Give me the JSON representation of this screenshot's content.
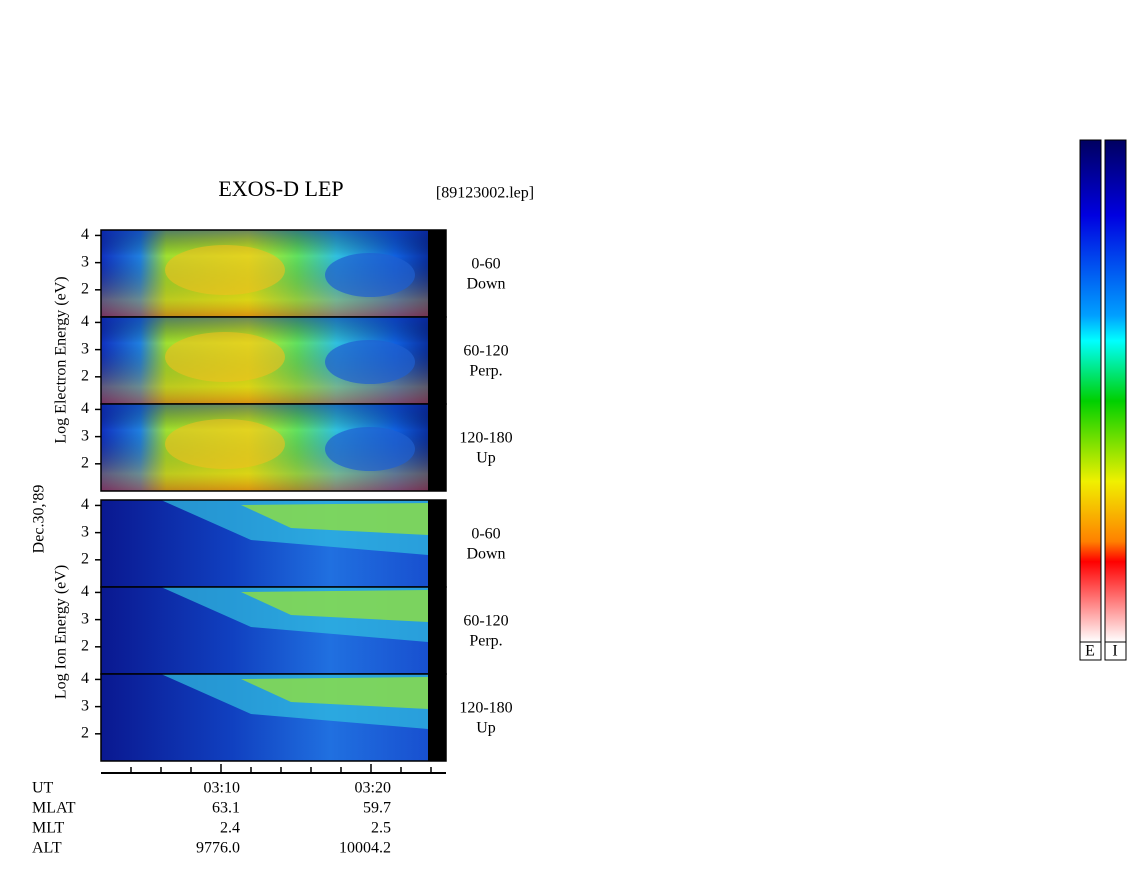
{
  "title": "EXOS-D LEP",
  "file": "[89123002.lep]",
  "date_label": "Dec.30,'89",
  "electron_axis_label": "Log  Electron  Energy (eV)",
  "ion_axis_label": "Log  Ion  Energy (eV)",
  "electron_panels": [
    {
      "angle": "0-60",
      "direction": "Down",
      "ylim": [
        1,
        4.2
      ],
      "yticks": [
        2,
        3,
        4
      ]
    },
    {
      "angle": "60-120",
      "direction": "Perp.",
      "ylim": [
        1,
        4.2
      ],
      "yticks": [
        2,
        3,
        4
      ]
    },
    {
      "angle": "120-180",
      "direction": "Up",
      "ylim": [
        1,
        4.2
      ],
      "yticks": [
        2,
        3,
        4
      ]
    }
  ],
  "ion_panels": [
    {
      "angle": "0-60",
      "direction": "Down",
      "ylim": [
        1,
        4.2
      ],
      "yticks": [
        2,
        3,
        4
      ]
    },
    {
      "angle": "60-120",
      "direction": "Perp.",
      "ylim": [
        1,
        4.2
      ],
      "yticks": [
        2,
        3,
        4
      ]
    },
    {
      "angle": "120-180",
      "direction": "Up",
      "ylim": [
        1,
        4.2
      ],
      "yticks": [
        2,
        3,
        4
      ]
    }
  ],
  "table": {
    "rows": [
      [
        "UT",
        "03:10",
        "03:20"
      ],
      [
        "MLAT",
        "63.1",
        "59.7"
      ],
      [
        "MLT",
        "2.4",
        "2.5"
      ],
      [
        "ALT",
        "9776.0",
        "10004.2"
      ]
    ]
  },
  "colorbar_labels": [
    "E",
    "I"
  ]
}
